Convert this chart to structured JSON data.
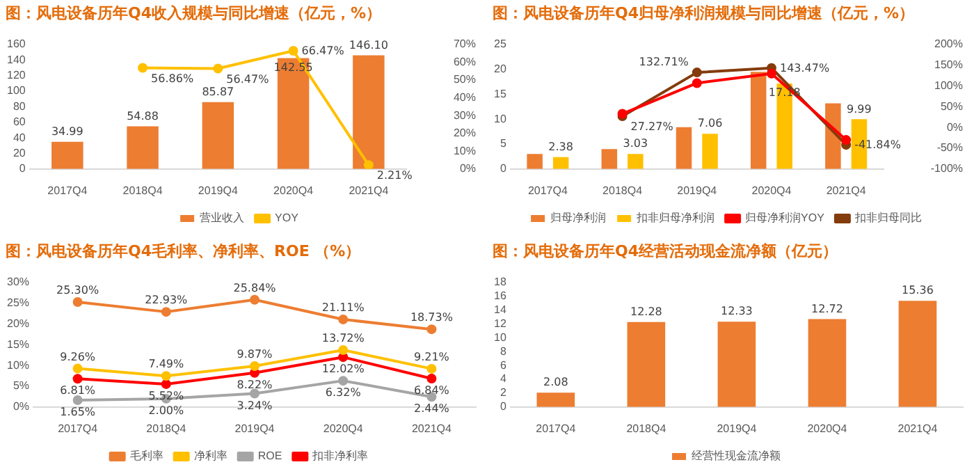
{
  "chart_data": [
    {
      "type": "bar",
      "title": "图：风电设备历年Q4收入规模与同比增速（亿元，%）",
      "categories": [
        "2017Q4",
        "2018Q4",
        "2019Q4",
        "2020Q4",
        "2021Q4"
      ],
      "ylim": [
        0,
        160
      ],
      "yticks": [
        0,
        20,
        40,
        60,
        80,
        100,
        120,
        140,
        160
      ],
      "y2lim": [
        0,
        70
      ],
      "y2ticks": [
        {
          "value": 0,
          "label": "0%"
        },
        {
          "value": 10,
          "label": "10%"
        },
        {
          "value": 20,
          "label": "20%"
        },
        {
          "value": 30,
          "label": "30%"
        },
        {
          "value": 40,
          "label": "40%"
        },
        {
          "value": 50,
          "label": "50%"
        },
        {
          "value": 60,
          "label": "60%"
        },
        {
          "value": 70,
          "label": "70%"
        }
      ],
      "legend": "bottom",
      "marker": "circle",
      "series": [
        {
          "name": "营业收入",
          "type": "bar",
          "color": "#ed7d31",
          "values": [
            34.99,
            54.88,
            85.87,
            142.55,
            146.1
          ],
          "value_labels": [
            "34.99",
            "54.88",
            "85.87",
            "142.55",
            "146.10"
          ]
        },
        {
          "name": "YOY",
          "type": "line",
          "axis": "y2",
          "color": "#ffc000",
          "values": [
            null,
            56.86,
            56.47,
            66.47,
            2.21
          ],
          "value_labels": [
            null,
            "56.86%",
            "56.47%",
            "66.47%",
            "2.21%"
          ]
        }
      ]
    },
    {
      "type": "bar",
      "title": "图：风电设备历年Q4归母净利润规模与同比增速（亿元，%）",
      "categories": [
        "2017Q4",
        "2018Q4",
        "2019Q4",
        "2020Q4",
        "2021Q4"
      ],
      "ylim": [
        0,
        25
      ],
      "yticks": [
        0,
        5,
        10,
        15,
        20,
        25
      ],
      "y2lim": [
        -100,
        200
      ],
      "y2ticks": [
        {
          "value": -100,
          "label": "-100%"
        },
        {
          "value": -50,
          "label": "-50%"
        },
        {
          "value": 0,
          "label": "0%"
        },
        {
          "value": 50,
          "label": "50%"
        },
        {
          "value": 100,
          "label": "100%"
        },
        {
          "value": 150,
          "label": "150%"
        },
        {
          "value": 200,
          "label": "200%"
        }
      ],
      "legend": "bottom",
      "marker": "circle",
      "series": [
        {
          "name": "归母净利润",
          "type": "bar",
          "color": "#ed7d31",
          "values": [
            3.0,
            4.0,
            8.4,
            19.5,
            13.2
          ]
        },
        {
          "name": "扣非归母净利润",
          "type": "bar",
          "color": "#ffc000",
          "values": [
            2.38,
            3.03,
            7.06,
            17.18,
            9.99
          ],
          "value_labels": [
            "2.38",
            "3.03",
            "7.06",
            "17.18",
            "9.99"
          ]
        },
        {
          "name": "归母净利润YOY",
          "type": "line",
          "axis": "y2",
          "color": "#ff0000",
          "values": [
            null,
            33,
            107,
            130,
            -30
          ]
        },
        {
          "name": "扣非归母同比",
          "type": "line",
          "axis": "y2",
          "color": "#843c0c",
          "values": [
            null,
            27.27,
            132.71,
            143.47,
            -41.84
          ],
          "value_labels": [
            null,
            "27.27%",
            "132.71%",
            "143.47%",
            "-41.84%"
          ]
        }
      ]
    },
    {
      "type": "line",
      "title": "图：风电设备历年Q4毛利率、净利率、ROE （%）",
      "categories": [
        "2017Q4",
        "2018Q4",
        "2019Q4",
        "2020Q4",
        "2021Q4"
      ],
      "ylim": [
        0,
        30
      ],
      "yticks": [
        {
          "value": 0,
          "label": "0%"
        },
        {
          "value": 5,
          "label": "5%"
        },
        {
          "value": 10,
          "label": "10%"
        },
        {
          "value": 15,
          "label": "15%"
        },
        {
          "value": 20,
          "label": "20%"
        },
        {
          "value": 25,
          "label": "25%"
        },
        {
          "value": 30,
          "label": "30%"
        }
      ],
      "legend": "bottom",
      "marker": "circle",
      "series": [
        {
          "name": "毛利率",
          "color": "#ed7d31",
          "values": [
            25.3,
            22.93,
            25.84,
            21.11,
            18.73
          ],
          "value_labels": [
            "25.30%",
            "22.93%",
            "25.84%",
            "21.11%",
            "18.73%"
          ]
        },
        {
          "name": "净利率",
          "color": "#ffc000",
          "values": [
            9.26,
            7.49,
            9.87,
            13.72,
            9.21
          ],
          "value_labels": [
            "9.26%",
            "7.49%",
            "9.87%",
            "13.72%",
            "9.21%"
          ]
        },
        {
          "name": "ROE",
          "color": "#a5a5a5",
          "values": [
            1.65,
            2.0,
            3.24,
            6.32,
            2.44
          ],
          "value_labels": [
            "1.65%",
            "2.00%",
            "3.24%",
            "6.32%",
            "2.44%"
          ]
        },
        {
          "name": "扣非净利率",
          "color": "#ff0000",
          "values": [
            6.81,
            5.52,
            8.22,
            12.02,
            6.84
          ],
          "value_labels": [
            "6.81%",
            "5.52%",
            "8.22%",
            "12.02%",
            "6.84%"
          ]
        }
      ]
    },
    {
      "type": "bar",
      "title": "图：风电设备历年Q4经营活动现金流净额（亿元）",
      "categories": [
        "2017Q4",
        "2018Q4",
        "2019Q4",
        "2020Q4",
        "2021Q4"
      ],
      "ylim": [
        0,
        18
      ],
      "yticks": [
        0,
        2,
        4,
        6,
        8,
        10,
        12,
        14,
        16,
        18
      ],
      "legend": "bottom",
      "series": [
        {
          "name": "经营性现金流净额",
          "color": "#ed7d31",
          "values": [
            2.08,
            12.28,
            12.33,
            12.72,
            15.36
          ],
          "value_labels": [
            "2.08",
            "12.28",
            "12.33",
            "12.72",
            "15.36"
          ]
        }
      ]
    }
  ]
}
